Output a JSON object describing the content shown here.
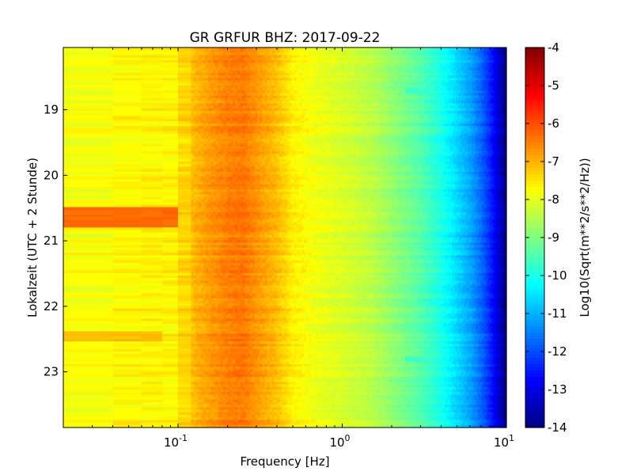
{
  "chart_data": {
    "type": "heatmap",
    "title": "GR GRFUR BHZ: 2017-09-22",
    "xlabel": "Frequency [Hz]",
    "ylabel": "Lokalzeit (UTC + 2 Stunde)",
    "colorbar_label": "Log10(Sqrt(m**2/s**2/Hz))",
    "x_scale": "log",
    "xlim": [
      0.02,
      10
    ],
    "x_ticks": [
      {
        "value": 0.1,
        "base": "10",
        "exp": "-1"
      },
      {
        "value": 1,
        "base": "10",
        "exp": "0"
      },
      {
        "value": 10,
        "base": "10",
        "exp": "1"
      }
    ],
    "ylim": [
      18.05,
      23.85
    ],
    "y_inverted": true,
    "y_ticks": [
      {
        "value": 19,
        "label": "19"
      },
      {
        "value": 20,
        "label": "20"
      },
      {
        "value": 21,
        "label": "21"
      },
      {
        "value": 22,
        "label": "22"
      },
      {
        "value": 23,
        "label": "23"
      }
    ],
    "colorbar": {
      "min": -14,
      "max": -4,
      "colormap": "jet",
      "ticks": [
        "-4",
        "-5",
        "-6",
        "-7",
        "-8",
        "-9",
        "-10",
        "-11",
        "-12",
        "-13",
        "-14"
      ]
    },
    "spectrum_profile": {
      "frequency_hz": [
        0.02,
        0.04,
        0.06,
        0.08,
        0.1,
        0.12,
        0.15,
        0.2,
        0.25,
        0.3,
        0.4,
        0.5,
        0.7,
        1.0,
        1.5,
        2.0,
        3.0,
        4.0,
        5.0,
        6.0,
        7.0,
        8.0,
        9.0,
        10.0
      ],
      "log10_amplitude": [
        -7.8,
        -7.8,
        -7.6,
        -7.7,
        -7.6,
        -7.1,
        -6.8,
        -6.5,
        -6.4,
        -6.7,
        -7.1,
        -7.6,
        -7.9,
        -8.1,
        -8.4,
        -8.8,
        -9.4,
        -10.0,
        -10.6,
        -11.1,
        -11.7,
        -12.4,
        -13.2,
        -14.0
      ]
    },
    "anomalies": [
      {
        "kind": "low-frequency excitation",
        "time_start": 20.5,
        "time_end": 20.8,
        "freq_max_hz": 0.1,
        "log10_amplitude": -6.3
      },
      {
        "kind": "low-frequency excitation",
        "time_start": 22.4,
        "time_end": 22.55,
        "freq_max_hz": 0.08,
        "log10_amplitude": -7.1
      },
      {
        "kind": "spectral line",
        "time": 18.7,
        "freq_min_hz": 2.4,
        "freq_max_hz": 3.6,
        "log10_amplitude": -9.7
      },
      {
        "kind": "spectral line",
        "time": 22.8,
        "freq_min_hz": 2.4,
        "freq_max_hz": 3.6,
        "log10_amplitude": -9.7
      }
    ]
  }
}
